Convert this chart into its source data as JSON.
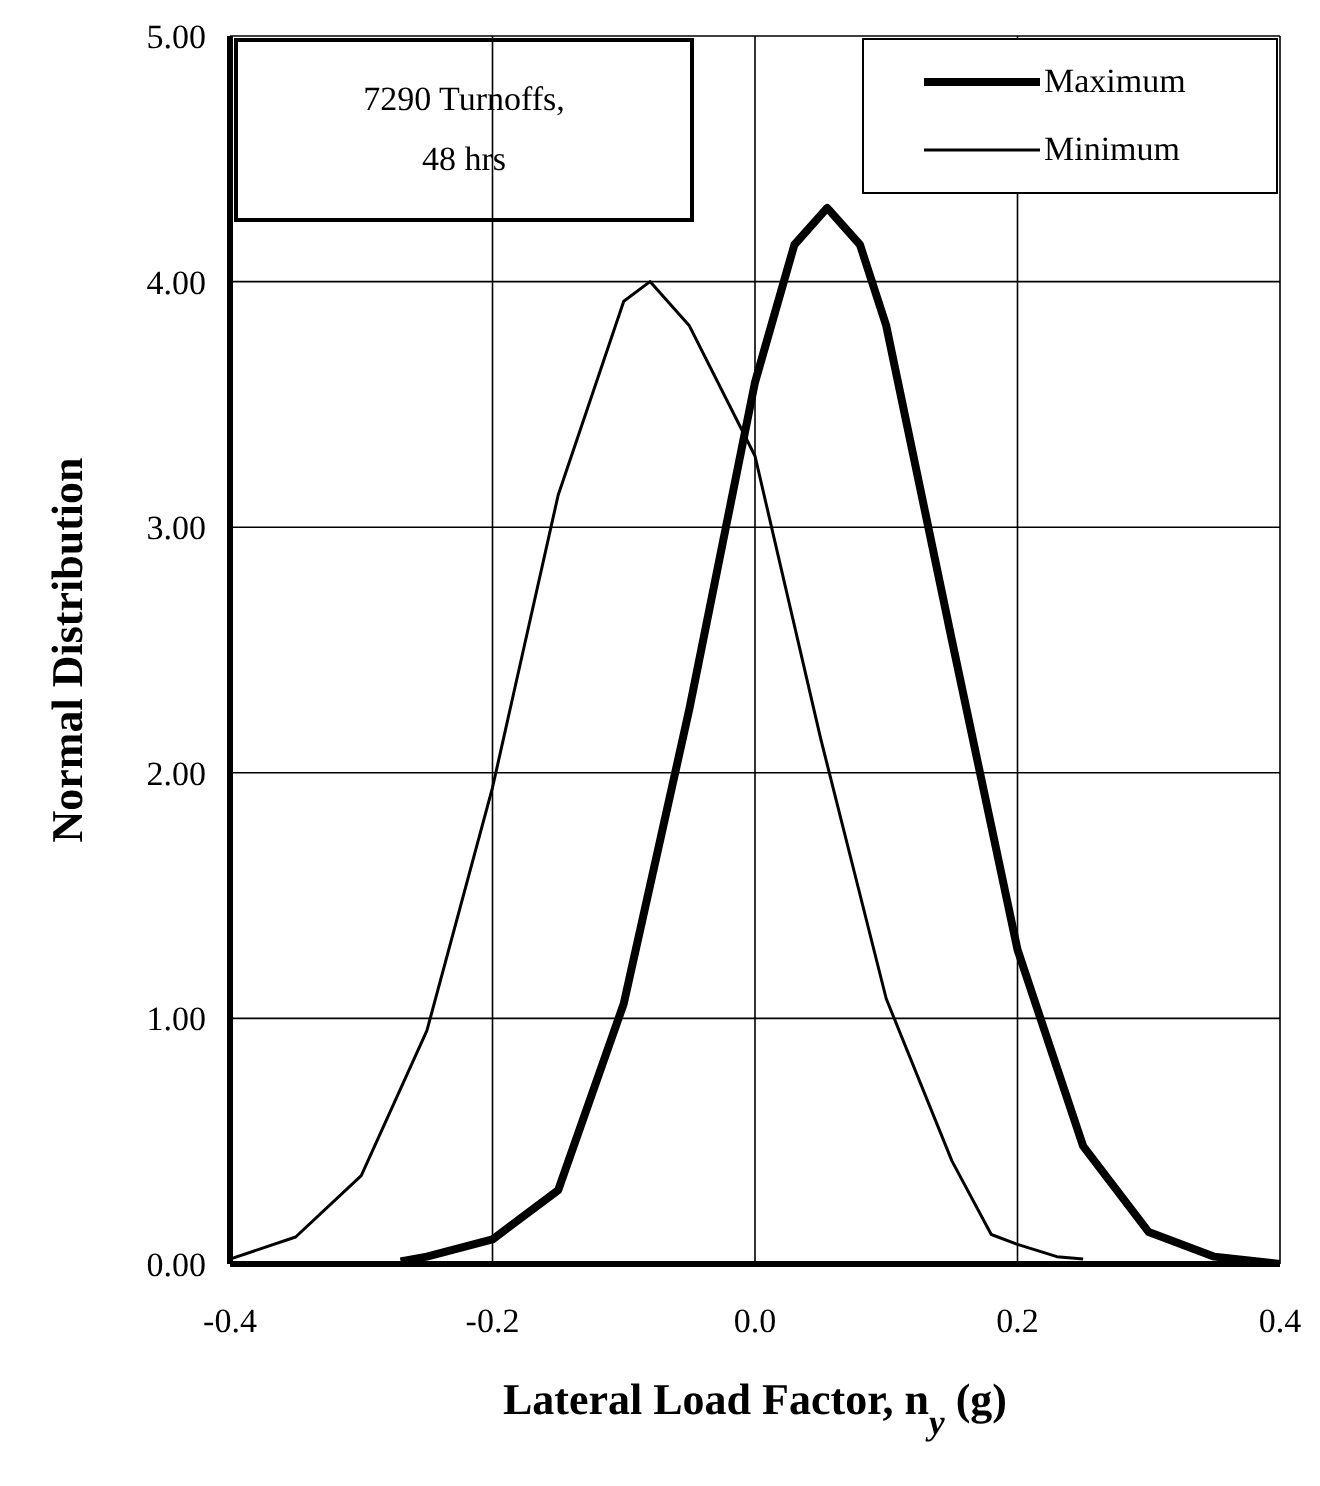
{
  "chart_data": {
    "type": "line",
    "xlabel": "Lateral Load Factor, n$_{y}$ (g)",
    "ylabel": "Normal Distribution",
    "annotations": [
      "7290 Turnoffs,\n48 hrs"
    ],
    "xlim": [
      -0.4,
      0.4
    ],
    "xticks": [
      {
        "value": -0.4,
        "label": "-0.4"
      },
      {
        "value": -0.2,
        "label": "-0.2"
      },
      {
        "value": 0,
        "label": "0.0"
      },
      {
        "value": 0.2,
        "label": "0.2"
      },
      {
        "value": 0.4,
        "label": "0.4"
      }
    ],
    "ylim": [
      0,
      5
    ],
    "yticks": [
      {
        "value": 0,
        "label": "0.00"
      },
      {
        "value": 1,
        "label": "1.00"
      },
      {
        "value": 2,
        "label": "2.00"
      },
      {
        "value": 3,
        "label": "3.00"
      },
      {
        "value": 4,
        "label": "4.00"
      },
      {
        "value": 5,
        "label": "5.00"
      }
    ],
    "grid": true,
    "legend": "top right",
    "marker": "none",
    "line_style": "solid",
    "series": [
      {
        "name": "Maximum",
        "color": "#000000",
        "x": [
          -0.27,
          -0.25,
          -0.2,
          -0.15,
          -0.1,
          -0.05,
          0,
          0.03,
          0.055,
          0.08,
          0.1,
          0.15,
          0.2,
          0.25,
          0.3,
          0.35,
          0.4
        ],
        "values": [
          0.01,
          0.03,
          0.1,
          0.3,
          1.06,
          2.26,
          3.59,
          4.15,
          4.3,
          4.15,
          3.82,
          2.54,
          1.28,
          0.48,
          0.13,
          0.03,
          0
        ]
      },
      {
        "name": "Minimum",
        "color": "#000000",
        "x": [
          -0.4,
          -0.35,
          -0.3,
          -0.25,
          -0.2,
          -0.15,
          -0.1,
          -0.08,
          -0.05,
          0,
          0.05,
          0.1,
          0.15,
          0.18,
          0.2,
          0.23,
          0.25
        ],
        "values": [
          0.02,
          0.11,
          0.36,
          0.95,
          1.94,
          3.13,
          3.92,
          4.0,
          3.82,
          3.29,
          2.14,
          1.08,
          0.42,
          0.12,
          0.08,
          0.03,
          0.02
        ]
      }
    ]
  }
}
